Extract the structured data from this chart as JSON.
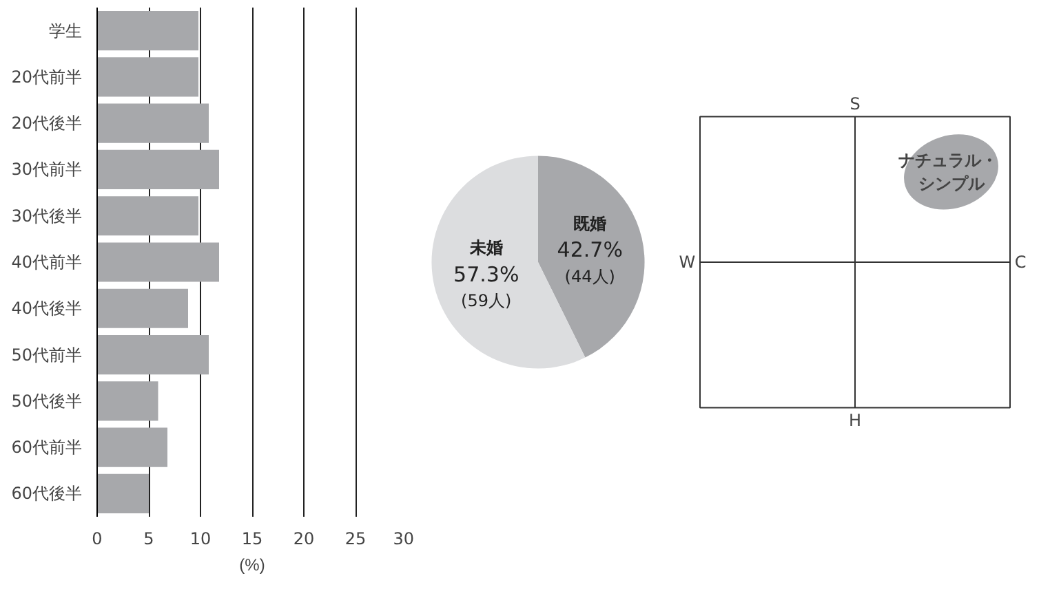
{
  "chart_data": [
    {
      "type": "bar",
      "orientation": "horizontal",
      "xlabel": "(%)",
      "categories": [
        "学生",
        "20代前半",
        "20代後半",
        "30代前半",
        "30代後半",
        "40代前半",
        "40代後半",
        "50代前半",
        "50代後半",
        "60代前半",
        "60代後半"
      ],
      "values": [
        9.8,
        9.8,
        10.8,
        11.8,
        9.8,
        11.8,
        8.8,
        10.8,
        5.9,
        6.8,
        5.0
      ],
      "color": "#a7a8ab",
      "xlim": [
        0,
        30
      ],
      "xticks": [
        0,
        5,
        10,
        15,
        20,
        25,
        30
      ],
      "grid": "x"
    },
    {
      "type": "pie",
      "categories": [
        "既婚",
        "未婚"
      ],
      "values": [
        42.7,
        57.3
      ],
      "colors": [
        "#a7a8ab",
        "#dcdddf"
      ],
      "value_labels": [
        "42.7%",
        "57.3%"
      ],
      "annotations": [
        "(44人)",
        "(59人)"
      ]
    },
    {
      "type": "other",
      "annotations": [
        "S",
        "H",
        "W",
        "C",
        "ナチュラル・",
        "シンプル"
      ]
    }
  ]
}
